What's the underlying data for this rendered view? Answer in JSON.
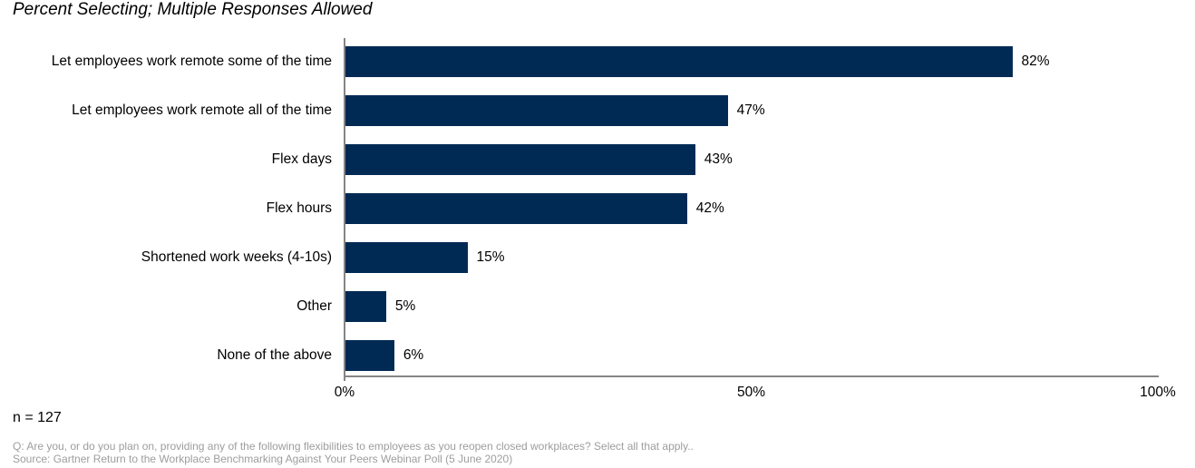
{
  "chart_data": {
    "type": "bar",
    "orientation": "horizontal",
    "title": "Percent Selecting; Multiple Responses Allowed",
    "categories": [
      "Let employees work remote some of the time",
      "Let employees work remote all of the time",
      "Flex days",
      "Flex hours",
      "Shortened work weeks (4-10s)",
      "Other",
      "None of the above"
    ],
    "values": [
      82,
      47,
      43,
      42,
      15,
      5,
      6
    ],
    "value_labels": [
      "82%",
      "47%",
      "43%",
      "42%",
      "15%",
      "5%",
      "6%"
    ],
    "xlim": [
      0,
      100
    ],
    "x_ticks": [
      {
        "value": 0,
        "label": "0%"
      },
      {
        "value": 50,
        "label": "50%"
      },
      {
        "value": 100,
        "label": "100%"
      }
    ],
    "xlabel": "",
    "ylabel": "",
    "grid": false,
    "legend": null,
    "bar_color": "#002a54",
    "axis_color": "#858585"
  },
  "footer": {
    "sample_size": "n = 127",
    "question": "Q: Are you, or do you plan on, providing any of the following flexibilities to employees as you reopen closed workplaces? Select all that apply..",
    "source": "Source: Gartner Return to the Workplace Benchmarking Against Your Peers Webinar Poll (5 June 2020)"
  }
}
